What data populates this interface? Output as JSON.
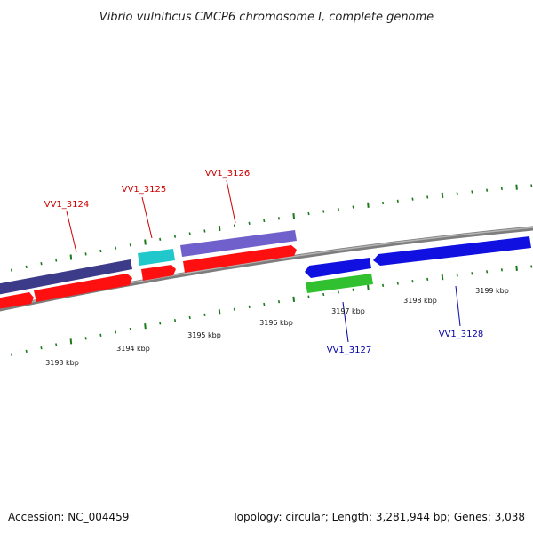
{
  "title": "Vibrio vulnificus CMCP6 chromosome I, complete genome",
  "accession": "Accession: NC_004459",
  "summary": "Topology: circular; Length: 3,281,944 bp; Genes: 3,038",
  "colors": {
    "backbone": "#8a8a8a",
    "tick": "#1a7a1a",
    "cds_forward": "#ff0000",
    "cds_reverse": "#0000ff",
    "label_forward": "#cc0000",
    "label_reverse": "#0000aa",
    "gene_navy": "#3b3b8a",
    "gene_cyan": "#20c8cc",
    "gene_purple": "#7060cc",
    "gene_green": "#30c030"
  },
  "scale_labels": [
    "3193 kbp",
    "3194 kbp",
    "3195 kbp",
    "3196 kbp",
    "3197 kbp",
    "3198 kbp",
    "3199 kbp"
  ],
  "gene_labels": [
    {
      "text": "VV1_3124",
      "strand": "forward"
    },
    {
      "text": "VV1_3125",
      "strand": "forward"
    },
    {
      "text": "VV1_3126",
      "strand": "forward"
    },
    {
      "text": "VV1_3127",
      "strand": "reverse"
    },
    {
      "text": "VV1_3128",
      "strand": "reverse"
    }
  ]
}
